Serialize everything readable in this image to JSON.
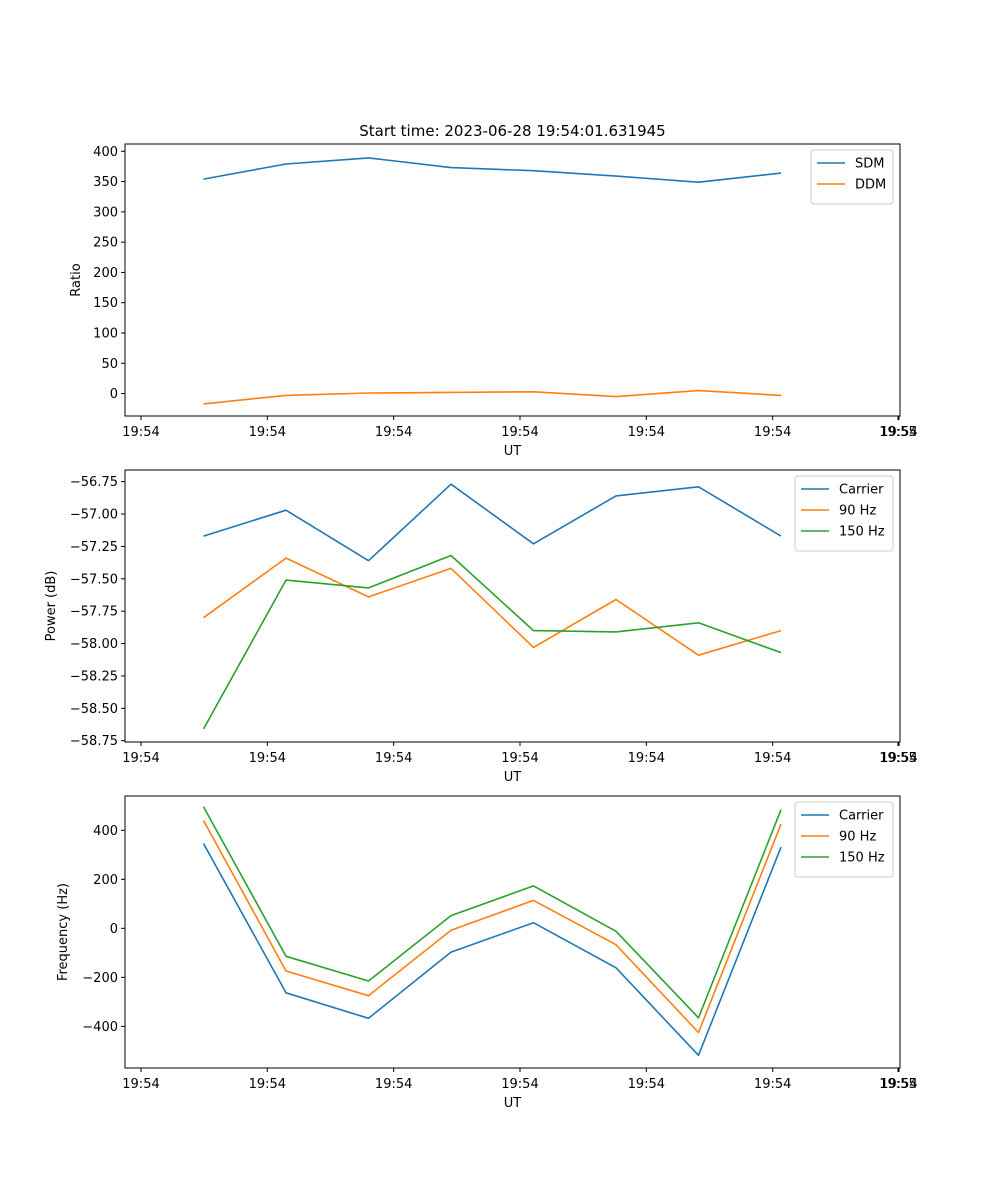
{
  "figure": {
    "title": "Start time: 2023-06-28 19:54:01.631945"
  },
  "chart_data": [
    {
      "type": "line",
      "xlabel": "UT",
      "ylabel": "Ratio",
      "x_tick_labels": [
        "19:54",
        "19:54",
        "19:54",
        "19:54",
        "19:54",
        "19:54",
        "19:54",
        "19:55"
      ],
      "ylim": [
        -37,
        412
      ],
      "y_ticks": [
        0,
        50,
        100,
        150,
        200,
        250,
        300,
        350,
        400
      ],
      "y_tick_labels": [
        "0",
        "50",
        "100",
        "150",
        "200",
        "250",
        "300",
        "350",
        "400"
      ],
      "legend_position": "upper-right",
      "grid": false,
      "series": [
        {
          "name": "SDM",
          "color": "#1f77b4",
          "values": [
            354,
            379,
            389,
            373,
            368,
            359,
            349,
            364
          ]
        },
        {
          "name": "DDM",
          "color": "#ff7f0e",
          "values": [
            -17,
            -3,
            1,
            2,
            3,
            -5,
            5,
            -3
          ]
        }
      ]
    },
    {
      "type": "line",
      "xlabel": "UT",
      "ylabel": "Power (dB)",
      "x_tick_labels": [
        "19:54",
        "19:54",
        "19:54",
        "19:54",
        "19:54",
        "19:54",
        "19:54",
        "19:55"
      ],
      "ylim": [
        -58.76,
        -56.66
      ],
      "y_ticks": [
        -58.75,
        -58.5,
        -58.25,
        -58.0,
        -57.75,
        -57.5,
        -57.25,
        -57.0,
        -56.75
      ],
      "y_tick_labels": [
        "−58.75",
        "−58.50",
        "−58.25",
        "−58.00",
        "−57.75",
        "−57.50",
        "−57.25",
        "−57.00",
        "−56.75"
      ],
      "legend_position": "upper-right",
      "grid": false,
      "series": [
        {
          "name": "Carrier",
          "color": "#1f77b4",
          "values": [
            -57.17,
            -56.97,
            -57.36,
            -56.77,
            -57.23,
            -56.86,
            -56.79,
            -57.17
          ]
        },
        {
          "name": "90 Hz",
          "color": "#ff7f0e",
          "values": [
            -57.8,
            -57.34,
            -57.64,
            -57.42,
            -58.03,
            -57.66,
            -58.09,
            -57.9
          ]
        },
        {
          "name": "150 Hz",
          "color": "#2ca02c",
          "values": [
            -58.66,
            -57.51,
            -57.57,
            -57.32,
            -57.9,
            -57.91,
            -57.84,
            -58.07
          ]
        }
      ]
    },
    {
      "type": "line",
      "xlabel": "UT",
      "ylabel": "Frequency (Hz)",
      "x_tick_labels": [
        "19:54",
        "19:54",
        "19:54",
        "19:54",
        "19:54",
        "19:54",
        "19:54",
        "19:55"
      ],
      "ylim": [
        -570,
        540
      ],
      "y_ticks": [
        -400,
        -200,
        0,
        200,
        400
      ],
      "y_tick_labels": [
        "−400",
        "−200",
        "0",
        "200",
        "400"
      ],
      "legend_position": "upper-right",
      "grid": false,
      "series": [
        {
          "name": "Carrier",
          "color": "#1f77b4",
          "values": [
            346,
            -263,
            -367,
            -97,
            23,
            -161,
            -518,
            331
          ]
        },
        {
          "name": "90 Hz",
          "color": "#ff7f0e",
          "values": [
            440,
            -174,
            -275,
            -8,
            114,
            -67,
            -425,
            425
          ]
        },
        {
          "name": "150 Hz",
          "color": "#2ca02c",
          "values": [
            496,
            -114,
            -215,
            52,
            173,
            -12,
            -365,
            484
          ]
        }
      ]
    }
  ]
}
